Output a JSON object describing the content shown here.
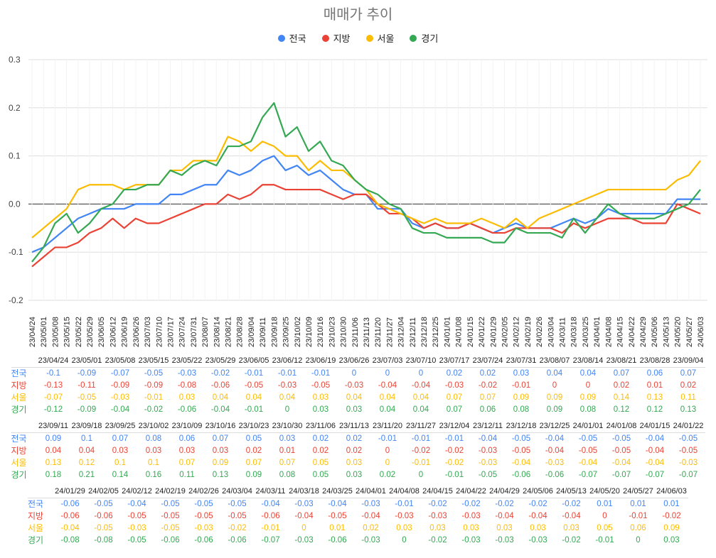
{
  "chart_data": {
    "type": "line",
    "title": "매매가 추이",
    "legend_position": "top",
    "grid": true,
    "ylim": [
      -0.2,
      0.3
    ],
    "yticks": [
      "0.3",
      "0.2",
      "0.1",
      "0.0",
      "-0.1",
      "-0.2"
    ],
    "ytick_values": [
      0.3,
      0.2,
      0.1,
      0.0,
      -0.1,
      -0.2
    ],
    "categories": [
      "23/04/24",
      "23/05/01",
      "23/05/08",
      "23/05/15",
      "23/05/22",
      "23/05/29",
      "23/06/05",
      "23/06/12",
      "23/06/19",
      "23/06/26",
      "23/07/03",
      "23/07/10",
      "23/07/17",
      "23/07/24",
      "23/07/31",
      "23/08/07",
      "23/08/14",
      "23/08/21",
      "23/08/28",
      "23/09/04",
      "23/09/11",
      "23/09/18",
      "23/09/25",
      "23/10/02",
      "23/10/09",
      "23/10/16",
      "23/10/23",
      "23/10/30",
      "23/11/06",
      "23/11/13",
      "23/11/20",
      "23/11/27",
      "23/12/04",
      "23/12/11",
      "23/12/18",
      "23/12/25",
      "24/01/01",
      "24/01/08",
      "24/01/15",
      "24/01/22",
      "24/01/29",
      "24/02/05",
      "24/02/12",
      "24/02/19",
      "24/02/26",
      "24/03/04",
      "24/03/11",
      "24/03/18",
      "24/03/25",
      "24/04/01",
      "24/04/08",
      "24/04/15",
      "24/04/22",
      "24/04/29",
      "24/05/06",
      "24/05/13",
      "24/05/20",
      "24/05/27",
      "24/06/03"
    ],
    "series": [
      {
        "name": "전국",
        "color": "#4285F4",
        "values": [
          -0.1,
          -0.09,
          -0.07,
          -0.05,
          -0.03,
          -0.02,
          -0.01,
          -0.01,
          -0.01,
          0,
          0,
          0,
          0.02,
          0.02,
          0.03,
          0.04,
          0.04,
          0.07,
          0.06,
          0.07,
          0.09,
          0.1,
          0.07,
          0.08,
          0.06,
          0.07,
          0.05,
          0.03,
          0.02,
          0.02,
          -0.01,
          -0.01,
          -0.01,
          -0.04,
          -0.05,
          -0.04,
          -0.05,
          -0.05,
          -0.04,
          -0.05,
          -0.06,
          -0.05,
          -0.04,
          -0.05,
          -0.05,
          -0.05,
          -0.04,
          -0.03,
          -0.04,
          -0.03,
          -0.01,
          -0.02,
          -0.02,
          -0.02,
          -0.02,
          -0.02,
          0.01,
          0.01,
          0.01
        ]
      },
      {
        "name": "지방",
        "color": "#EA4335",
        "values": [
          -0.13,
          -0.11,
          -0.09,
          -0.09,
          -0.08,
          -0.06,
          -0.05,
          -0.03,
          -0.05,
          -0.03,
          -0.04,
          -0.04,
          -0.03,
          -0.02,
          -0.01,
          0,
          0,
          0.02,
          0.01,
          0.02,
          0.04,
          0.04,
          0.03,
          0.03,
          0.03,
          0.03,
          0.02,
          0.01,
          0.02,
          0.02,
          0,
          -0.02,
          -0.02,
          -0.03,
          -0.05,
          -0.04,
          -0.05,
          -0.05,
          -0.04,
          -0.05,
          -0.06,
          -0.06,
          -0.05,
          -0.05,
          -0.05,
          -0.05,
          -0.06,
          -0.04,
          -0.05,
          -0.04,
          -0.03,
          -0.03,
          -0.03,
          -0.04,
          -0.04,
          -0.04,
          0,
          -0.01,
          -0.02
        ]
      },
      {
        "name": "서울",
        "color": "#FBBC04",
        "values": [
          -0.07,
          -0.05,
          -0.03,
          -0.01,
          0.03,
          0.04,
          0.04,
          0.04,
          0.03,
          0.04,
          0.04,
          0.04,
          0.07,
          0.07,
          0.09,
          0.09,
          0.09,
          0.14,
          0.13,
          0.11,
          0.13,
          0.12,
          0.1,
          0.1,
          0.07,
          0.09,
          0.07,
          0.07,
          0.05,
          0.03,
          0,
          -0.01,
          -0.02,
          -0.03,
          -0.04,
          -0.03,
          -0.04,
          -0.04,
          -0.04,
          -0.03,
          -0.04,
          -0.05,
          -0.03,
          -0.05,
          -0.03,
          -0.02,
          -0.01,
          0,
          0.01,
          0.02,
          0.03,
          0.03,
          0.03,
          0.03,
          0.03,
          0.03,
          0.05,
          0.06,
          0.09
        ]
      },
      {
        "name": "경기",
        "color": "#34A853",
        "values": [
          -0.12,
          -0.09,
          -0.04,
          -0.02,
          -0.06,
          -0.04,
          -0.01,
          0,
          0.03,
          0.03,
          0.04,
          0.04,
          0.07,
          0.06,
          0.08,
          0.09,
          0.08,
          0.12,
          0.12,
          0.13,
          0.18,
          0.21,
          0.14,
          0.16,
          0.11,
          0.13,
          0.09,
          0.08,
          0.05,
          0.03,
          0.02,
          0,
          -0.01,
          -0.05,
          -0.06,
          -0.06,
          -0.07,
          -0.07,
          -0.07,
          -0.07,
          -0.08,
          -0.08,
          -0.05,
          -0.06,
          -0.06,
          -0.06,
          -0.07,
          -0.03,
          -0.06,
          -0.03,
          0,
          -0.02,
          -0.03,
          -0.03,
          -0.03,
          -0.02,
          -0.01,
          0,
          0.03
        ]
      }
    ]
  }
}
